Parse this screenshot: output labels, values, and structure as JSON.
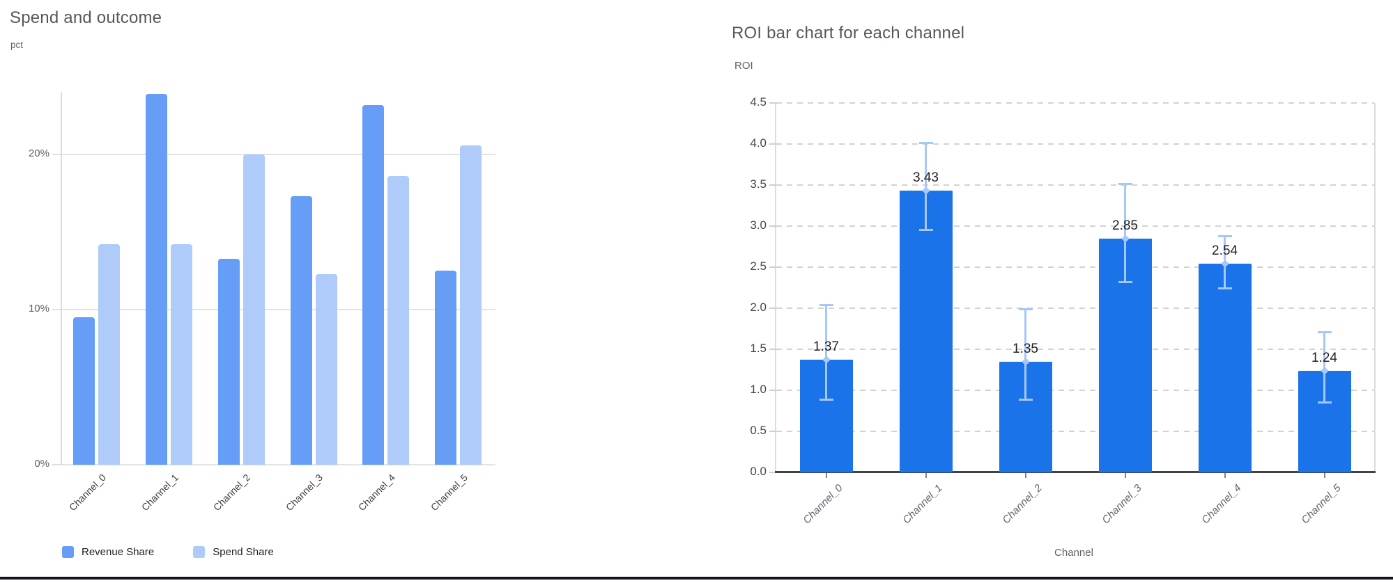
{
  "page": {
    "bottom_divider_color": "#14171a"
  },
  "chart_data": [
    {
      "type": "bar",
      "title": "Spend and outcome",
      "ylabel": "pct",
      "xlabel": "",
      "categories": [
        "Channel_0",
        "Channel_1",
        "Channel_2",
        "Channel_3",
        "Channel_4",
        "Channel_5"
      ],
      "series": [
        {
          "name": "Revenue Share",
          "color": "#669df6",
          "values": [
            9.5,
            23.9,
            13.3,
            17.3,
            23.2,
            12.5
          ]
        },
        {
          "name": "Spend Share",
          "color": "#aecbfa",
          "values": [
            14.2,
            14.2,
            20.0,
            12.3,
            18.6,
            20.6
          ]
        }
      ],
      "yticks": [
        {
          "label": "0%",
          "value": 0
        },
        {
          "label": "10%",
          "value": 10
        },
        {
          "label": "20%",
          "value": 20
        }
      ],
      "ylim": [
        0,
        24
      ],
      "grid": "horizontal-solid",
      "legend_position": "bottom-left",
      "bar_corner": "rounded-top"
    },
    {
      "type": "bar",
      "title": "ROI bar chart for each channel",
      "ylabel": "ROI",
      "xlabel": "Channel",
      "categories": [
        "Channel_0",
        "Channel_1",
        "Channel_2",
        "Channel_3",
        "Channel_4",
        "Channel_5"
      ],
      "series": [
        {
          "name": "ROI",
          "color": "#1a73e8",
          "values": [
            1.37,
            3.43,
            1.35,
            2.85,
            2.54,
            1.24
          ]
        }
      ],
      "value_labels": [
        "1.37",
        "3.43",
        "1.35",
        "2.85",
        "2.54",
        "1.24"
      ],
      "error_bars": {
        "color": "#a6c7fa",
        "low": [
          0.88,
          2.95,
          0.88,
          2.31,
          2.24,
          0.85
        ],
        "high": [
          2.04,
          4.02,
          1.99,
          3.52,
          2.88,
          1.71
        ]
      },
      "yticks": [
        {
          "label": "0.0",
          "value": 0.0
        },
        {
          "label": "0.5",
          "value": 0.5
        },
        {
          "label": "1.0",
          "value": 1.0
        },
        {
          "label": "1.5",
          "value": 1.5
        },
        {
          "label": "2.0",
          "value": 2.0
        },
        {
          "label": "2.5",
          "value": 2.5
        },
        {
          "label": "3.0",
          "value": 3.0
        },
        {
          "label": "3.5",
          "value": 3.5
        },
        {
          "label": "4.0",
          "value": 4.0
        },
        {
          "label": "4.5",
          "value": 4.5
        }
      ],
      "ylim": [
        0,
        4.5
      ],
      "grid": "horizontal-dashed",
      "x_tick_style": "italic",
      "legend_position": "none"
    }
  ]
}
